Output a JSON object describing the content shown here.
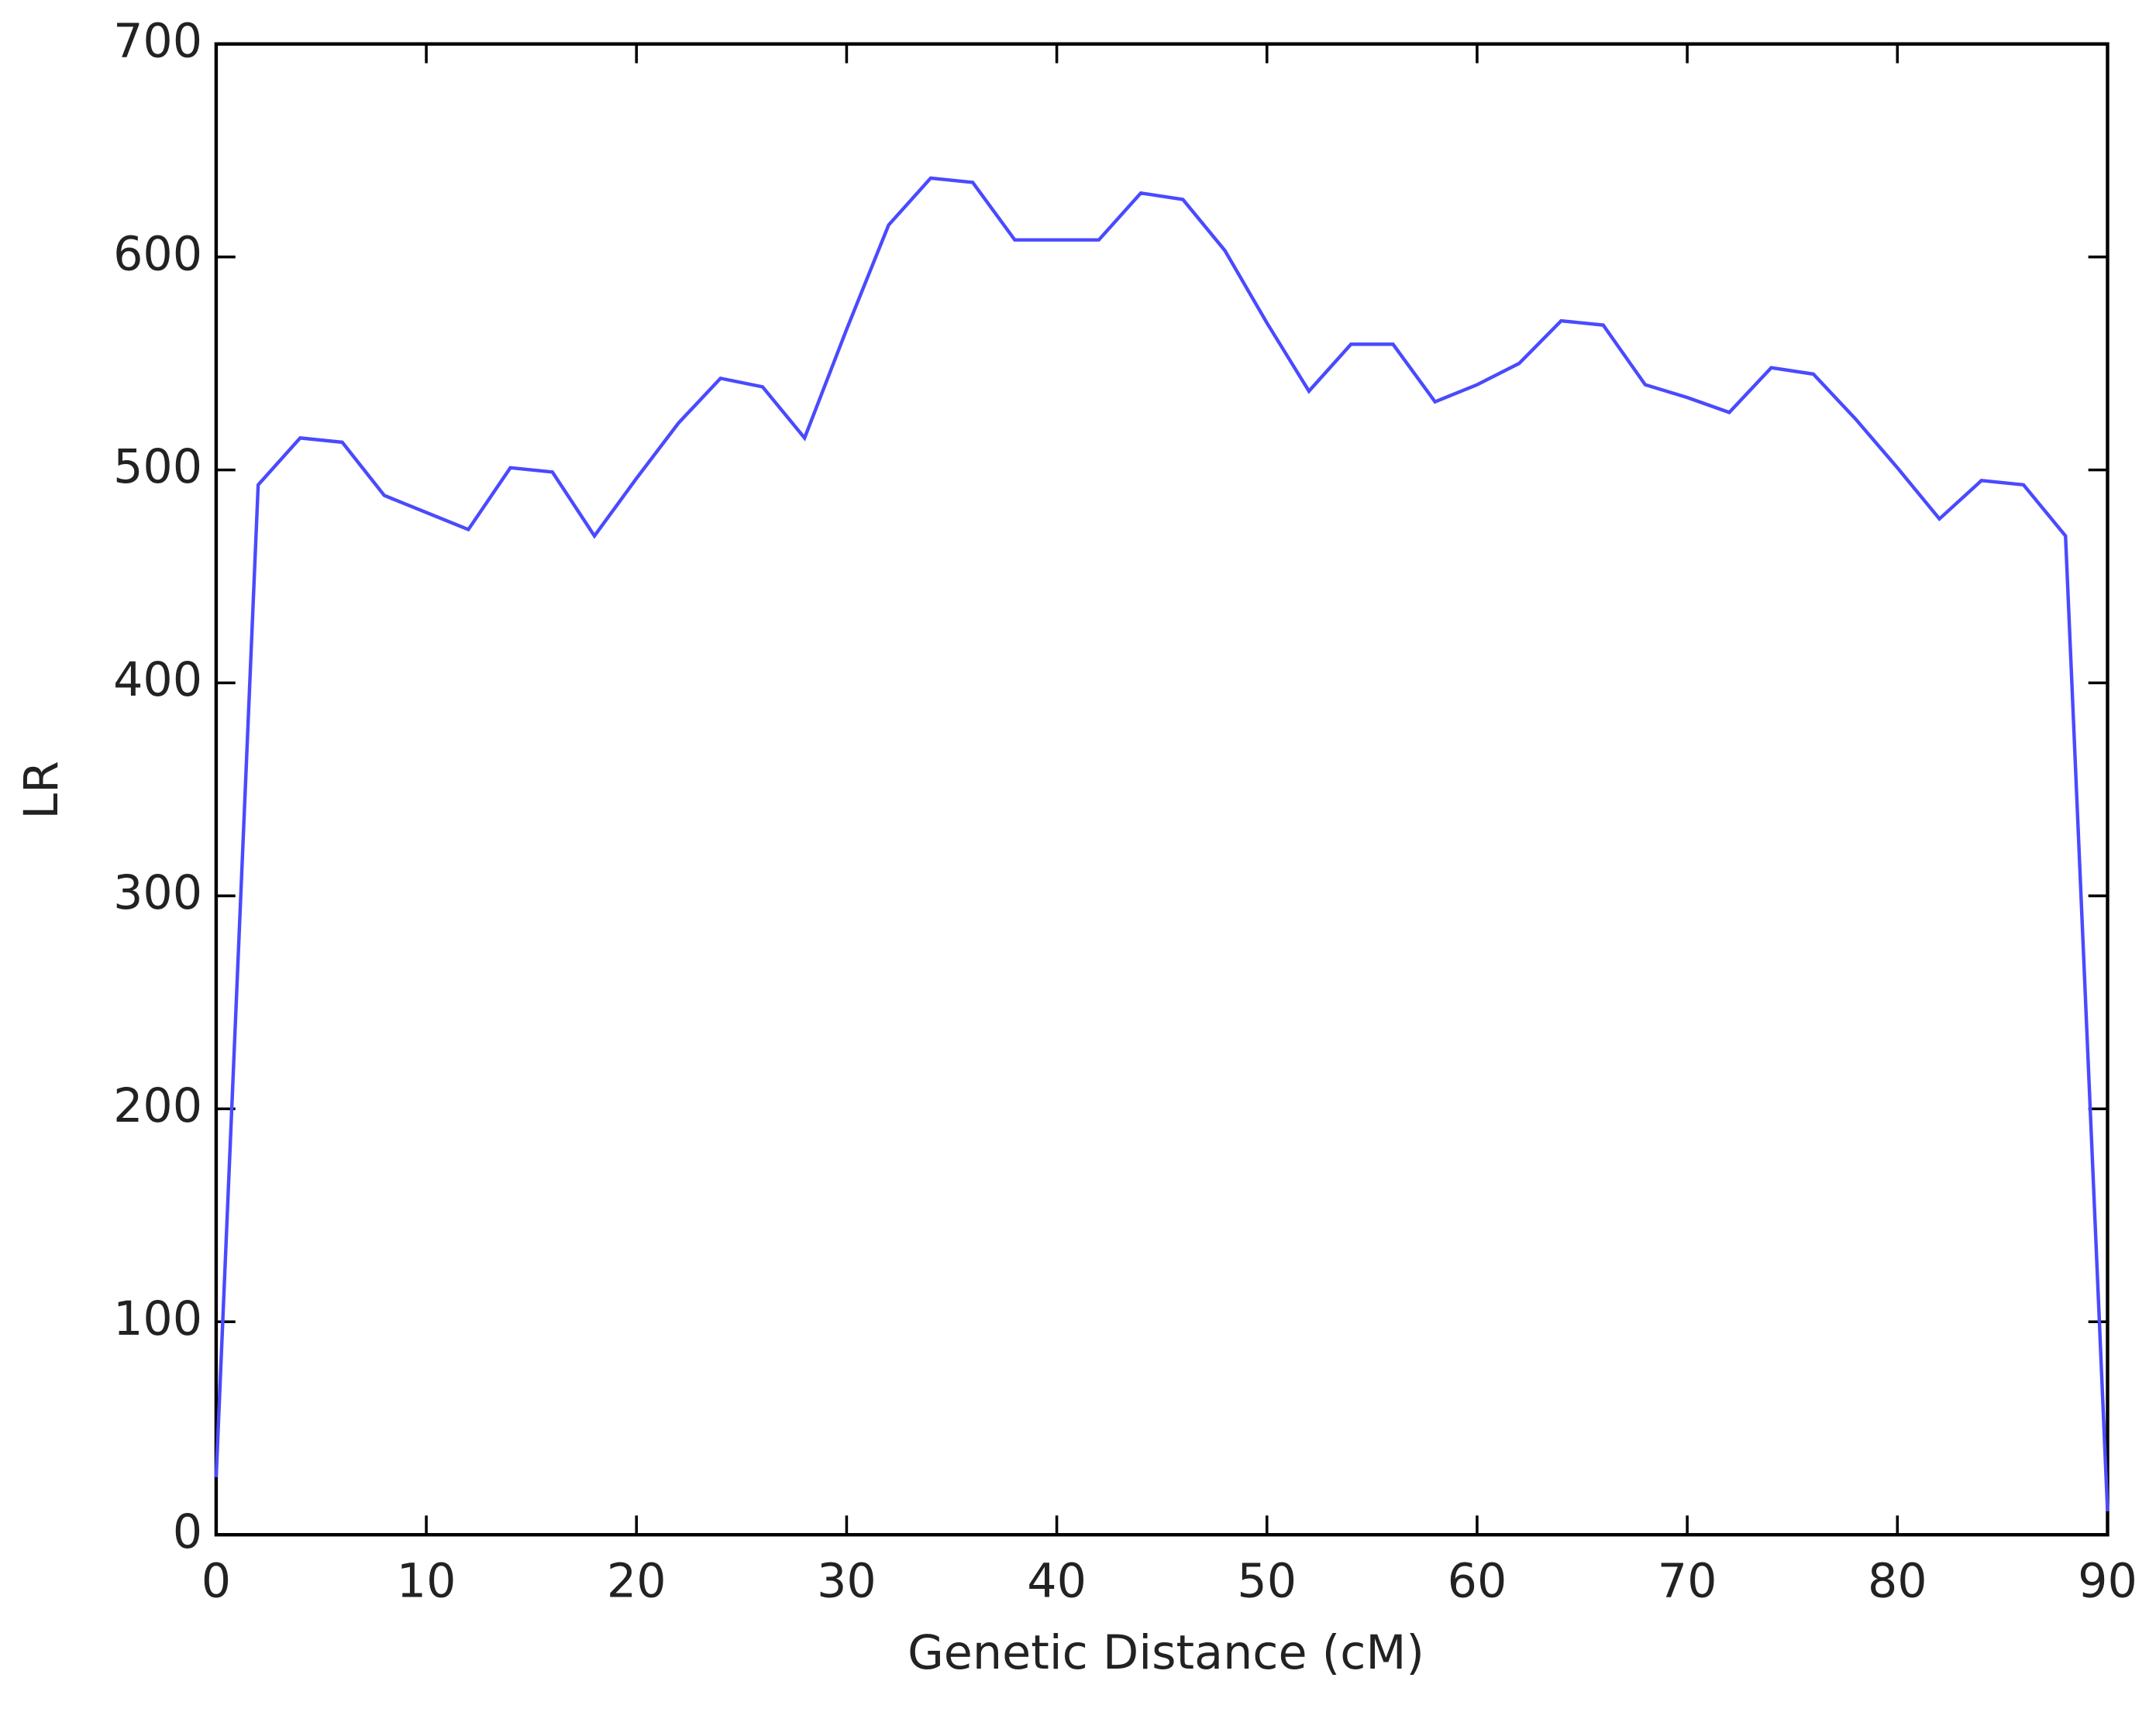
{
  "chart_data": {
    "type": "line",
    "x_label": "Genetic Distance (cM)",
    "y_label": "LR",
    "x": [
      0,
      2,
      4,
      6,
      8,
      10,
      12,
      14,
      16,
      18,
      20,
      22,
      24,
      26,
      28,
      30,
      32,
      34,
      36,
      38,
      40,
      42,
      44,
      46,
      48,
      50,
      52,
      54,
      56,
      58,
      60,
      62,
      64,
      66,
      68,
      70,
      72,
      74,
      76,
      78,
      80,
      82,
      84,
      86,
      88,
      90
    ],
    "series": [
      {
        "color": "#4a4aff",
        "values": [
          27,
          493,
          515,
          513,
          488,
          480,
          472,
          501,
          499,
          469,
          496,
          522,
          543,
          539,
          515,
          566,
          615,
          637,
          635,
          608,
          608,
          608,
          630,
          627,
          603,
          569,
          537,
          559,
          559,
          532,
          540,
          550,
          570,
          568,
          540,
          534,
          527,
          548,
          545,
          524,
          501,
          477,
          495,
          493,
          469,
          11
        ]
      }
    ],
    "xlim": [
      0,
      90
    ],
    "ylim": [
      0,
      700
    ],
    "xticks": [
      0,
      10,
      20,
      30,
      40,
      50,
      60,
      70,
      80,
      90
    ],
    "yticks": [
      0,
      100,
      200,
      300,
      400,
      500,
      600,
      700
    ],
    "grid": false
  }
}
